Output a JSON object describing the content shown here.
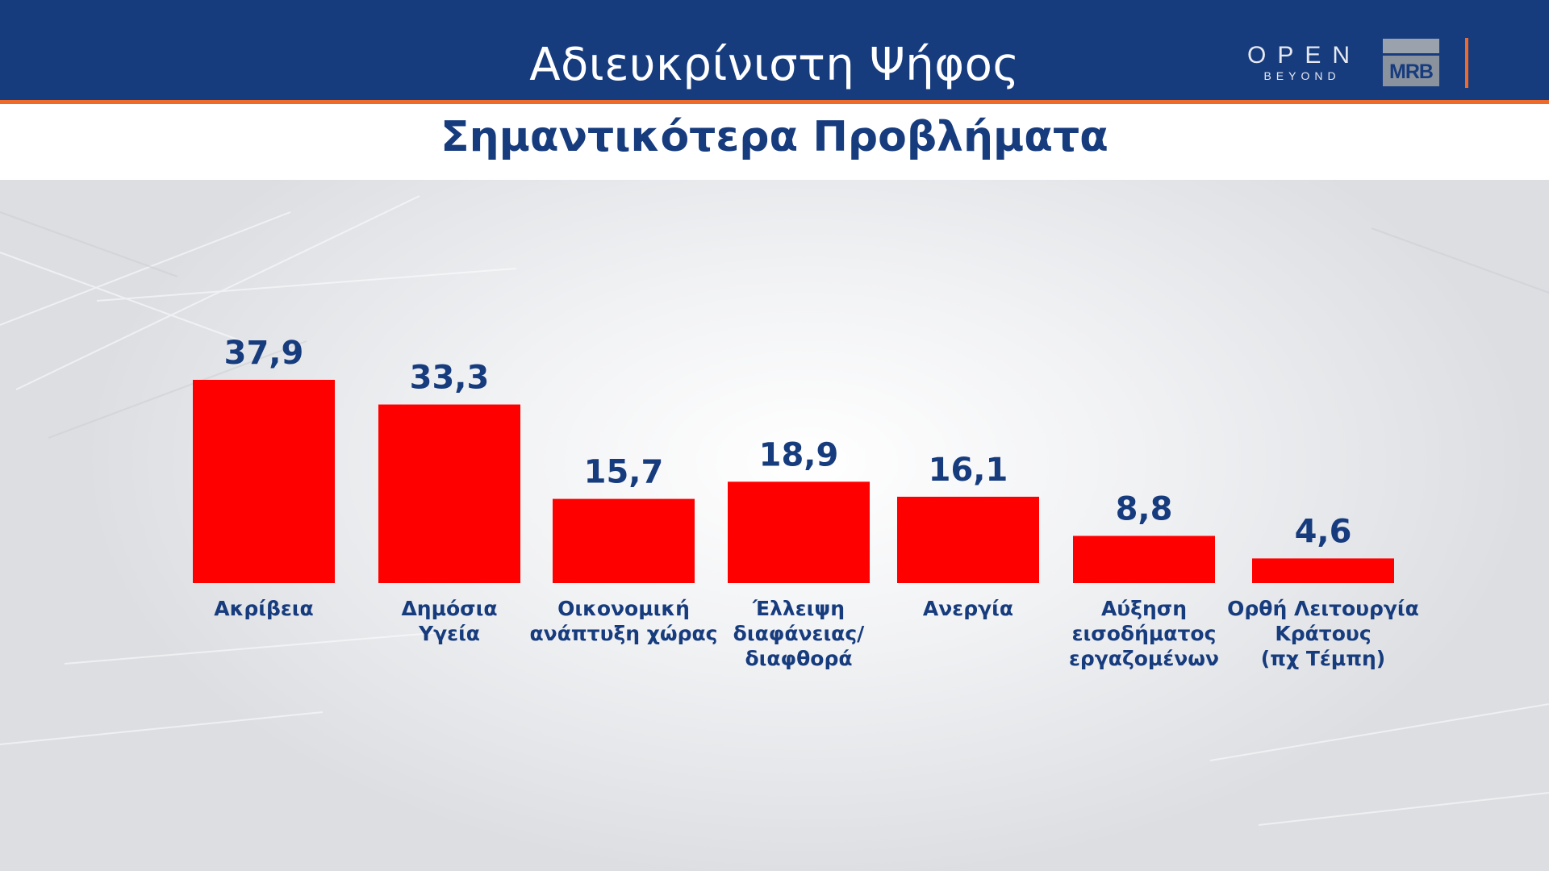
{
  "header": {
    "title": "Αδιευκρίνιστη Ψήφος",
    "brand_open": "OPEN",
    "brand_open_sub": "BEYOND",
    "brand_mrb": "MRB"
  },
  "subtitle": "Σημαντικότερα Προβλήματα",
  "colors": {
    "header_bg": "#173c7e",
    "accent_orange": "#ee6a2a",
    "bar": "#ff0000",
    "text_navy": "#173c7e"
  },
  "chart_data": {
    "type": "bar",
    "title": "Σημαντικότερα Προβλήματα",
    "categories": [
      [
        "Ακρίβεια"
      ],
      [
        "Δημόσια",
        "Υγεία"
      ],
      [
        "Οικονομική",
        "ανάπτυξη χώρας"
      ],
      [
        "Έλλειψη",
        "διαφάνειας/",
        "διαφθορά"
      ],
      [
        "Ανεργία"
      ],
      [
        "Αύξηση",
        "εισοδήματος",
        "εργαζομένων"
      ],
      [
        "Ορθή Λειτουργία",
        "Κράτους",
        "(πχ Τέμπη)"
      ]
    ],
    "values": [
      37.9,
      33.3,
      15.7,
      18.9,
      16.1,
      8.8,
      4.6
    ],
    "value_labels": [
      "37,9",
      "33,3",
      "15,7",
      "18,9",
      "16,1",
      "8,8",
      "4,6"
    ],
    "ylim": [
      0,
      40
    ],
    "grid": false,
    "legend": "none"
  }
}
